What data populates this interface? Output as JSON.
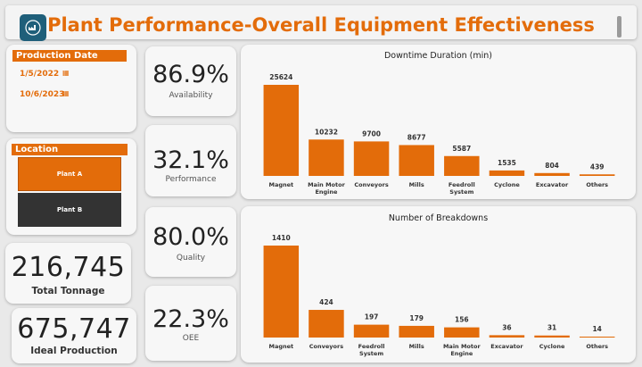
{
  "header": {
    "title": "Plant Performance-Overall Equipment Effectiveness",
    "logo_icon": "factory-icon"
  },
  "production_date": {
    "label": "Production Date",
    "start": "1/5/2022",
    "end": "10/6/2023"
  },
  "location": {
    "label": "Location",
    "options": [
      "Plant A",
      "Plant B"
    ]
  },
  "kpis": {
    "availability": {
      "value": "86.9%",
      "label": "Availability"
    },
    "performance": {
      "value": "32.1%",
      "label": "Performance"
    },
    "quality": {
      "value": "80.0%",
      "label": "Quality"
    },
    "oee": {
      "value": "22.3%",
      "label": "OEE"
    }
  },
  "totals": {
    "tonnage": {
      "value": "216,745",
      "label": "Total Tonnage"
    },
    "ideal": {
      "value": "675,747",
      "label": "Ideal Production"
    }
  },
  "colors": {
    "accent": "#e36c0a",
    "dark": "#333333"
  },
  "chart_data": [
    {
      "type": "bar",
      "title": "Downtime Duration (min)",
      "categories": [
        "Magnet",
        "Main Motor Engine",
        "Conveyors",
        "Mills",
        "Feedroll System",
        "Cyclone",
        "Excavator",
        "Others"
      ],
      "values": [
        25624,
        10232,
        9700,
        8677,
        5587,
        1535,
        804,
        439
      ]
    },
    {
      "type": "bar",
      "title": "Number of Breakdowns",
      "categories": [
        "Magnet",
        "Conveyors",
        "Feedroll System",
        "Mills",
        "Main Motor Engine",
        "Excavator",
        "Cyclone",
        "Others"
      ],
      "values": [
        1410,
        424,
        197,
        179,
        156,
        36,
        31,
        14
      ]
    }
  ]
}
